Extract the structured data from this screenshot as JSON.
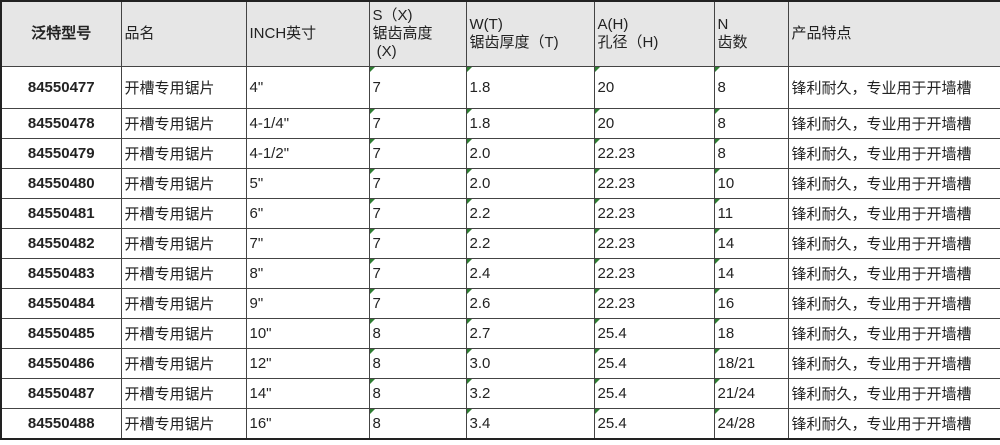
{
  "headers": {
    "model": "泛特型号",
    "name": "品名",
    "inch": "INCH英寸",
    "s_line1": "S（X)",
    "s_line2": "锯齿高度",
    "s_line3": "(X)",
    "w_line1": "W(T)",
    "w_line2": "锯齿厚度（T)",
    "a_line1": "A(H)",
    "a_line2": "孔径（H)",
    "n_line1": "N",
    "n_line2": "齿数",
    "feature": "产品特点"
  },
  "rows": [
    {
      "model": "84550477",
      "name": "开槽专用锯片",
      "inch": "4\"",
      "s": "7",
      "w": "1.8",
      "a": "20",
      "n": "8",
      "feature": "锋利耐久，专业用于开墙槽"
    },
    {
      "model": "84550478",
      "name": "开槽专用锯片",
      "inch": "4-1/4\"",
      "s": "7",
      "w": "1.8",
      "a": "20",
      "n": "8",
      "feature": "锋利耐久，专业用于开墙槽"
    },
    {
      "model": "84550479",
      "name": "开槽专用锯片",
      "inch": "4-1/2\"",
      "s": "7",
      "w": "2.0",
      "a": "22.23",
      "n": "8",
      "feature": "锋利耐久，专业用于开墙槽"
    },
    {
      "model": "84550480",
      "name": "开槽专用锯片",
      "inch": "5\"",
      "s": "7",
      "w": "2.0",
      "a": "22.23",
      "n": "10",
      "feature": "锋利耐久，专业用于开墙槽"
    },
    {
      "model": "84550481",
      "name": "开槽专用锯片",
      "inch": "6\"",
      "s": "7",
      "w": "2.2",
      "a": "22.23",
      "n": "11",
      "feature": "锋利耐久，专业用于开墙槽"
    },
    {
      "model": "84550482",
      "name": "开槽专用锯片",
      "inch": "7\"",
      "s": "7",
      "w": "2.2",
      "a": "22.23",
      "n": "14",
      "feature": "锋利耐久，专业用于开墙槽"
    },
    {
      "model": "84550483",
      "name": "开槽专用锯片",
      "inch": "8\"",
      "s": "7",
      "w": "2.4",
      "a": "22.23",
      "n": "14",
      "feature": "锋利耐久，专业用于开墙槽"
    },
    {
      "model": "84550484",
      "name": "开槽专用锯片",
      "inch": "9\"",
      "s": "7",
      "w": "2.6",
      "a": "22.23",
      "n": "16",
      "feature": "锋利耐久，专业用于开墙槽"
    },
    {
      "model": "84550485",
      "name": "开槽专用锯片",
      "inch": "10\"",
      "s": "8",
      "w": "2.7",
      "a": "25.4",
      "n": "18",
      "feature": "锋利耐久，专业用于开墙槽"
    },
    {
      "model": "84550486",
      "name": "开槽专用锯片",
      "inch": "12\"",
      "s": "8",
      "w": "3.0",
      "a": "25.4",
      "n": "18/21",
      "feature": "锋利耐久，专业用于开墙槽"
    },
    {
      "model": "84550487",
      "name": "开槽专用锯片",
      "inch": "14\"",
      "s": "8",
      "w": "3.2",
      "a": "25.4",
      "n": "21/24",
      "feature": "锋利耐久，专业用于开墙槽"
    },
    {
      "model": "84550488",
      "name": "开槽专用锯片",
      "inch": "16\"",
      "s": "8",
      "w": "3.4",
      "a": "25.4",
      "n": "24/28",
      "feature": "锋利耐久，专业用于开墙槽"
    }
  ]
}
